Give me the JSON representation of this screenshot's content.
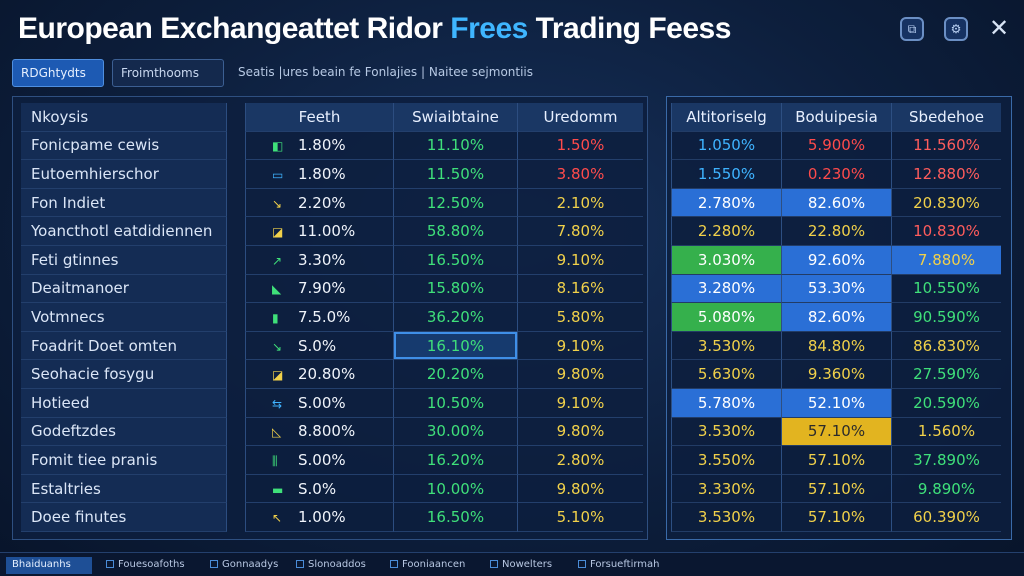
{
  "window": {
    "title_part1": "European Exchangeattet Ridor",
    "title_part2": "Frees",
    "title_part3": "Trading Feess",
    "btn1_icon": "⧉",
    "btn2_icon": "⚙",
    "close_icon": "✕"
  },
  "toolbar": {
    "tab_active": "RDGhtydts",
    "tab_normal": "Froimthooms",
    "info_text": "Seatis |ures beain fe Fonlajies | Naitee sejmontiis"
  },
  "left_table": {
    "headers": [
      "Nkoysis",
      "Feeth",
      "Swiaibtaine",
      "Uredomm"
    ],
    "rows": [
      {
        "name": "Fonicpame cewis",
        "icon": "◧",
        "icon_color": "#3fe07a",
        "a": "1.80%",
        "b": "11.10%",
        "c": "1.50%",
        "c_color": "#ff4b4b"
      },
      {
        "name": "Eutoemhierschor",
        "icon": "▭",
        "icon_color": "#3fb3ff",
        "a": "1.80%",
        "b": "11.50%",
        "c": "3.80%",
        "c_color": "#ff4b4b"
      },
      {
        "name": "Fon Indiet",
        "icon": "↘",
        "icon_color": "#f1d14a",
        "a": "2.20%",
        "b": "12.50%",
        "c": "2.10%",
        "c_color": "#f1d14a"
      },
      {
        "name": "Yoancthotl eatdidiennen",
        "icon": "◪",
        "icon_color": "#f1d14a",
        "a": "11.00%",
        "b": "58.80%",
        "c": "7.80%",
        "c_color": "#f1d14a"
      },
      {
        "name": "Feti gtinnes",
        "icon": "↗",
        "icon_color": "#3fe07a",
        "a": "3.30%",
        "b": "16.50%",
        "c": "9.10%",
        "c_color": "#f1d14a"
      },
      {
        "name": "Deaitmanoer",
        "icon": "◣",
        "icon_color": "#3fe07a",
        "a": "7.90%",
        "b": "15.80%",
        "c": "8.16%",
        "c_color": "#f1d14a"
      },
      {
        "name": "Votmnecs",
        "icon": "▮",
        "icon_color": "#3fe07a",
        "a": "7.5.0%",
        "b": "36.20%",
        "c": "5.80%",
        "c_color": "#f1d14a"
      },
      {
        "name": "Foadrit Doet omten",
        "icon": "↘",
        "icon_color": "#3fe07a",
        "a": "S.0%",
        "b": "16.10%",
        "c": "9.10%",
        "c_color": "#f1d14a"
      },
      {
        "name": "Seohacie fosygu",
        "icon": "◪",
        "icon_color": "#f1d14a",
        "a": "20.80%",
        "b": "20.20%",
        "c": "9.80%",
        "c_color": "#f1d14a"
      },
      {
        "name": "Hotieed",
        "icon": "⇆",
        "icon_color": "#3fb3ff",
        "a": "S.00%",
        "b": "10.50%",
        "c": "9.10%",
        "c_color": "#f1d14a"
      },
      {
        "name": "Godeftzdes",
        "icon": "◺",
        "icon_color": "#f1d14a",
        "a": "8.800%",
        "b": "30.00%",
        "c": "9.80%",
        "c_color": "#f1d14a"
      },
      {
        "name": "Fomit tiee pranis",
        "icon": "⫼",
        "icon_color": "#3fe07a",
        "a": "S.00%",
        "b": "16.20%",
        "c": "2.80%",
        "c_color": "#f1d14a"
      },
      {
        "name": "Estaltries",
        "icon": "▬",
        "icon_color": "#3fe07a",
        "a": "S.0%",
        "b": "10.00%",
        "c": "9.80%",
        "c_color": "#f1d14a"
      },
      {
        "name": "Doee finutes",
        "icon": "↖",
        "icon_color": "#f1d14a",
        "a": "1.00%",
        "b": "16.50%",
        "c": "5.10%",
        "c_color": "#f1d14a"
      }
    ]
  },
  "right_table": {
    "headers": [
      "Altitoriselg",
      "Boduipesia",
      "Sbedehoe"
    ],
    "rows": [
      [
        "1.050%",
        "5.900%",
        "11.560%"
      ],
      [
        "1.550%",
        "0.230%",
        "12.880%"
      ],
      [
        "2.780%",
        "82.60%",
        "20.830%"
      ],
      [
        "2.280%",
        "22.80%",
        "10.830%"
      ],
      [
        "3.030%",
        "92.60%",
        "7.880%"
      ],
      [
        "3.280%",
        "53.30%",
        "10.550%"
      ],
      [
        "5.080%",
        "82.60%",
        "90.590%"
      ],
      [
        "3.530%",
        "84.80%",
        "86.830%"
      ],
      [
        "5.630%",
        "9.360%",
        "27.590%"
      ],
      [
        "5.780%",
        "52.10%",
        "20.590%"
      ],
      [
        "3.530%",
        "57.10%",
        "1.560%"
      ],
      [
        "3.550%",
        "57.10%",
        "37.890%"
      ],
      [
        "3.330%",
        "57.10%",
        "9.890%"
      ],
      [
        "3.530%",
        "57.10%",
        "60.390%"
      ]
    ]
  },
  "statusbar": {
    "items": [
      "Bhaiduanhs",
      "Fouesoafoths",
      "Gonnaadys",
      "Slonoaddos",
      "Fooniaancen",
      "Nowelters",
      "Forsueftirmah"
    ]
  }
}
